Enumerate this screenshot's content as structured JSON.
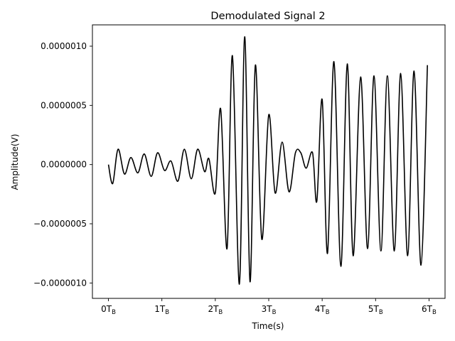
{
  "chart_data": {
    "type": "line",
    "title": "Demodulated Signal 2",
    "xlabel": "Time(s)",
    "ylabel": "Amplitude(V)",
    "xlim": [
      -0.3,
      6.3
    ],
    "ylim": [
      -1.13e-06,
      1.18e-06
    ],
    "grid": false,
    "legend": "none",
    "x_ticks": [
      {
        "value": 0,
        "label": "0T",
        "sub": "B"
      },
      {
        "value": 1,
        "label": "1T",
        "sub": "B"
      },
      {
        "value": 2,
        "label": "2T",
        "sub": "B"
      },
      {
        "value": 3,
        "label": "3T",
        "sub": "B"
      },
      {
        "value": 4,
        "label": "4T",
        "sub": "B"
      },
      {
        "value": 5,
        "label": "5T",
        "sub": "B"
      },
      {
        "value": 6,
        "label": "6T",
        "sub": "B"
      }
    ],
    "y_ticks": [
      {
        "value": -1e-06,
        "label": "−0.0000010"
      },
      {
        "value": -5e-07,
        "label": "−0.0000005"
      },
      {
        "value": 0,
        "label": "0.0000000"
      },
      {
        "value": 5e-07,
        "label": "0.0000005"
      },
      {
        "value": 1e-06,
        "label": "0.0000010"
      }
    ],
    "series": [
      {
        "color": "#000000",
        "x": [
          0,
          0.08,
          0.18,
          0.3,
          0.42,
          0.55,
          0.67,
          0.8,
          0.92,
          1.05,
          1.17,
          1.3,
          1.42,
          1.55,
          1.67,
          1.8,
          1.88,
          2.0,
          2.1,
          2.22,
          2.32,
          2.45,
          2.55,
          2.65,
          2.75,
          2.87,
          3.0,
          3.12,
          3.25,
          3.38,
          3.5,
          3.6,
          3.7,
          3.82,
          3.9,
          4.0,
          4.1,
          4.22,
          4.35,
          4.47,
          4.58,
          4.72,
          4.85,
          4.97,
          5.1,
          5.22,
          5.35,
          5.47,
          5.6,
          5.72,
          5.85,
          5.97
        ],
        "y": [
          0.0,
          -1.6e-07,
          1.3e-07,
          -8e-08,
          6e-08,
          -7e-08,
          9e-08,
          -1e-07,
          1e-07,
          -5e-08,
          3e-08,
          -1.4e-07,
          1.3e-07,
          -1.2e-07,
          1.3e-07,
          -6e-08,
          5e-08,
          -2.4e-07,
          4.7e-07,
          -7.1e-07,
          9.2e-07,
          -1.01e-06,
          1.08e-06,
          -9.9e-07,
          8.4e-07,
          -6.3e-07,
          4.2e-07,
          -2.4e-07,
          1.9e-07,
          -2.3e-07,
          1e-07,
          1e-07,
          -3e-08,
          1e-07,
          -3.1e-07,
          5.5e-07,
          -7.5e-07,
          8.7e-07,
          -8.6e-07,
          8.5e-07,
          -7.7e-07,
          7.4e-07,
          -7.1e-07,
          7.5e-07,
          -7.3e-07,
          7.5e-07,
          -7.3e-07,
          7.7e-07,
          -7.7e-07,
          7.9e-07,
          -8.5e-07,
          8.4e-07
        ]
      }
    ]
  }
}
